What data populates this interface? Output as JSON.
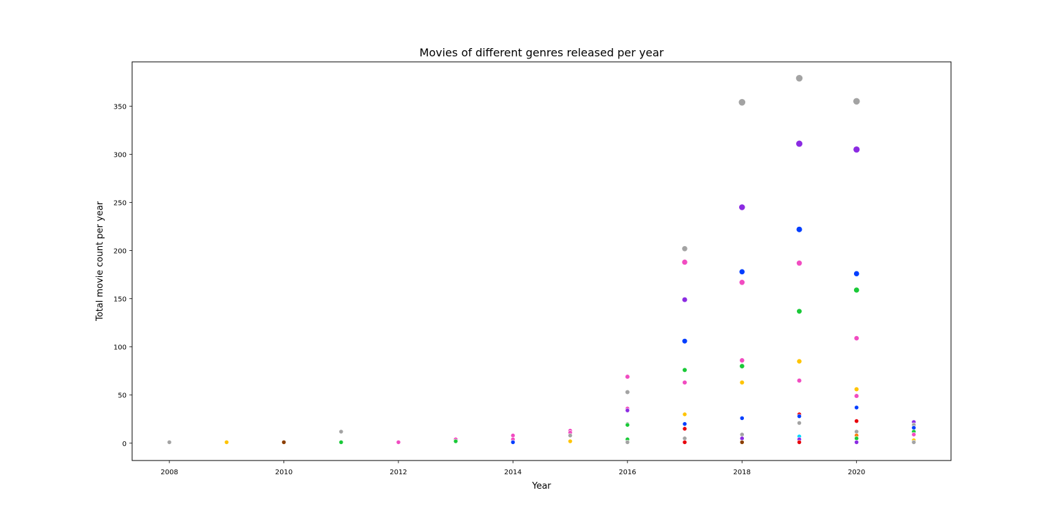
{
  "chart_data": {
    "type": "scatter",
    "title": "Movies of different genres released per year",
    "xlabel": "Year",
    "ylabel": "Total movie count per year",
    "xlim": [
      2007.35,
      2021.65
    ],
    "ylim": [
      -18,
      396
    ],
    "xticks": [
      2008,
      2010,
      2012,
      2014,
      2016,
      2018,
      2020
    ],
    "yticks": [
      0,
      50,
      100,
      150,
      200,
      250,
      300,
      350
    ],
    "grid": false,
    "legend": "none",
    "points": [
      {
        "x": 2008,
        "y": 1,
        "color": "#a3a3a3",
        "size": 5
      },
      {
        "x": 2009,
        "y": 1,
        "color": "#ffc400",
        "size": 5
      },
      {
        "x": 2010,
        "y": 1,
        "color": "#8c3f00",
        "size": 5
      },
      {
        "x": 2011,
        "y": 12,
        "color": "#a3a3a3",
        "size": 5
      },
      {
        "x": 2011,
        "y": 1,
        "color": "#1ac938",
        "size": 5
      },
      {
        "x": 2012,
        "y": 1,
        "color": "#f14cc1",
        "size": 5
      },
      {
        "x": 2013,
        "y": 4,
        "color": "#f14cc1",
        "size": 5
      },
      {
        "x": 2013,
        "y": 2,
        "color": "#1ac938",
        "size": 5
      },
      {
        "x": 2014,
        "y": 8,
        "color": "#f14cc1",
        "size": 5
      },
      {
        "x": 2014,
        "y": 4,
        "color": "#f14cc1",
        "size": 5
      },
      {
        "x": 2014,
        "y": 1,
        "color": "#023eff",
        "size": 5
      },
      {
        "x": 2015,
        "y": 13,
        "color": "#f14cc1",
        "size": 5
      },
      {
        "x": 2015,
        "y": 11,
        "color": "#f14cc1",
        "size": 5
      },
      {
        "x": 2015,
        "y": 8,
        "color": "#a3a3a3",
        "size": 5
      },
      {
        "x": 2015,
        "y": 2,
        "color": "#ffc400",
        "size": 5
      },
      {
        "x": 2016,
        "y": 69,
        "color": "#f14cc1",
        "size": 5.5
      },
      {
        "x": 2016,
        "y": 53,
        "color": "#a3a3a3",
        "size": 5.5
      },
      {
        "x": 2016,
        "y": 36,
        "color": "#f14cc1",
        "size": 5
      },
      {
        "x": 2016,
        "y": 34,
        "color": "#8b2be2",
        "size": 5
      },
      {
        "x": 2016,
        "y": 20,
        "color": "#a3a3a3",
        "size": 5
      },
      {
        "x": 2016,
        "y": 19,
        "color": "#1ac938",
        "size": 5
      },
      {
        "x": 2016,
        "y": 4,
        "color": "#1ac938",
        "size": 5
      },
      {
        "x": 2016,
        "y": 1,
        "color": "#a3a3a3",
        "size": 5
      },
      {
        "x": 2017,
        "y": 202,
        "color": "#a3a3a3",
        "size": 7
      },
      {
        "x": 2017,
        "y": 188,
        "color": "#f14cc1",
        "size": 7
      },
      {
        "x": 2017,
        "y": 149,
        "color": "#8b2be2",
        "size": 6.5
      },
      {
        "x": 2017,
        "y": 106,
        "color": "#023eff",
        "size": 6.5
      },
      {
        "x": 2017,
        "y": 76,
        "color": "#1ac938",
        "size": 5.5
      },
      {
        "x": 2017,
        "y": 63,
        "color": "#f14cc1",
        "size": 5.5
      },
      {
        "x": 2017,
        "y": 30,
        "color": "#ffc400",
        "size": 5
      },
      {
        "x": 2017,
        "y": 20,
        "color": "#023eff",
        "size": 5
      },
      {
        "x": 2017,
        "y": 15,
        "color": "#e8000b",
        "size": 5
      },
      {
        "x": 2017,
        "y": 5,
        "color": "#a3a3a3",
        "size": 5
      },
      {
        "x": 2017,
        "y": 1,
        "color": "#e8000b",
        "size": 5
      },
      {
        "x": 2018,
        "y": 354,
        "color": "#a3a3a3",
        "size": 9
      },
      {
        "x": 2018,
        "y": 245,
        "color": "#8b2be2",
        "size": 8
      },
      {
        "x": 2018,
        "y": 178,
        "color": "#023eff",
        "size": 7
      },
      {
        "x": 2018,
        "y": 167,
        "color": "#f14cc1",
        "size": 7
      },
      {
        "x": 2018,
        "y": 86,
        "color": "#f14cc1",
        "size": 6
      },
      {
        "x": 2018,
        "y": 80,
        "color": "#1ac938",
        "size": 6
      },
      {
        "x": 2018,
        "y": 63,
        "color": "#ffc400",
        "size": 5.5
      },
      {
        "x": 2018,
        "y": 26,
        "color": "#023eff",
        "size": 5
      },
      {
        "x": 2018,
        "y": 9,
        "color": "#a3a3a3",
        "size": 5
      },
      {
        "x": 2018,
        "y": 5,
        "color": "#8b2be2",
        "size": 5
      },
      {
        "x": 2018,
        "y": 1,
        "color": "#8c3f00",
        "size": 5
      },
      {
        "x": 2019,
        "y": 379,
        "color": "#a3a3a3",
        "size": 9
      },
      {
        "x": 2019,
        "y": 311,
        "color": "#8b2be2",
        "size": 8.5
      },
      {
        "x": 2019,
        "y": 222,
        "color": "#023eff",
        "size": 7.5
      },
      {
        "x": 2019,
        "y": 187,
        "color": "#f14cc1",
        "size": 7
      },
      {
        "x": 2019,
        "y": 137,
        "color": "#1ac938",
        "size": 6.5
      },
      {
        "x": 2019,
        "y": 85,
        "color": "#ffc400",
        "size": 6
      },
      {
        "x": 2019,
        "y": 65,
        "color": "#f14cc1",
        "size": 5.5
      },
      {
        "x": 2019,
        "y": 30,
        "color": "#e8000b",
        "size": 5
      },
      {
        "x": 2019,
        "y": 28,
        "color": "#023eff",
        "size": 5
      },
      {
        "x": 2019,
        "y": 21,
        "color": "#a3a3a3",
        "size": 5
      },
      {
        "x": 2019,
        "y": 7,
        "color": "#00d7ff",
        "size": 5
      },
      {
        "x": 2019,
        "y": 4,
        "color": "#8b2be2",
        "size": 5
      },
      {
        "x": 2019,
        "y": 1,
        "color": "#e8000b",
        "size": 5
      },
      {
        "x": 2020,
        "y": 355,
        "color": "#a3a3a3",
        "size": 9
      },
      {
        "x": 2020,
        "y": 305,
        "color": "#8b2be2",
        "size": 8.5
      },
      {
        "x": 2020,
        "y": 176,
        "color": "#023eff",
        "size": 7
      },
      {
        "x": 2020,
        "y": 159,
        "color": "#1ac938",
        "size": 7
      },
      {
        "x": 2020,
        "y": 109,
        "color": "#f14cc1",
        "size": 6
      },
      {
        "x": 2020,
        "y": 56,
        "color": "#ffc400",
        "size": 5.5
      },
      {
        "x": 2020,
        "y": 49,
        "color": "#f14cc1",
        "size": 5.5
      },
      {
        "x": 2020,
        "y": 37,
        "color": "#023eff",
        "size": 5
      },
      {
        "x": 2020,
        "y": 23,
        "color": "#e8000b",
        "size": 5
      },
      {
        "x": 2020,
        "y": 12,
        "color": "#a3a3a3",
        "size": 5
      },
      {
        "x": 2020,
        "y": 8,
        "color": "#ff7c00",
        "size": 5
      },
      {
        "x": 2020,
        "y": 5,
        "color": "#1ac938",
        "size": 5
      },
      {
        "x": 2020,
        "y": 1,
        "color": "#8b2be2",
        "size": 5
      },
      {
        "x": 2021,
        "y": 22,
        "color": "#8b2be2",
        "size": 5
      },
      {
        "x": 2021,
        "y": 19,
        "color": "#a3a3a3",
        "size": 5
      },
      {
        "x": 2021,
        "y": 16,
        "color": "#023eff",
        "size": 5
      },
      {
        "x": 2021,
        "y": 12,
        "color": "#1ac938",
        "size": 5
      },
      {
        "x": 2021,
        "y": 9,
        "color": "#f14cc1",
        "size": 5
      },
      {
        "x": 2021,
        "y": 3,
        "color": "#ffc400",
        "size": 5
      },
      {
        "x": 2021,
        "y": 1,
        "color": "#a3a3a3",
        "size": 5
      }
    ]
  }
}
